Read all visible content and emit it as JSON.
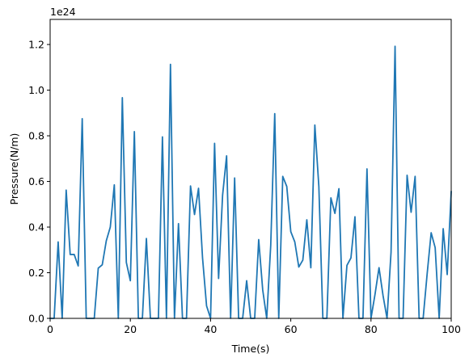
{
  "chart_data": {
    "type": "line",
    "title": "",
    "xlabel": "Time(s)",
    "ylabel": "Pressure(N/m)",
    "y_offset_text": "1e24",
    "xlim": [
      0,
      100
    ],
    "ylim": [
      0,
      1.31
    ],
    "grid": false,
    "x_ticks": [
      0,
      20,
      40,
      60,
      80,
      100
    ],
    "x_tick_labels": [
      "0",
      "20",
      "40",
      "60",
      "80",
      "100"
    ],
    "y_ticks": [
      0.0,
      0.2,
      0.4,
      0.6,
      0.8,
      1.0,
      1.2
    ],
    "y_tick_labels": [
      "0.0",
      "0.2",
      "0.4",
      "0.6",
      "0.8",
      "1.0",
      "1.2"
    ],
    "line_color": "#1f77b4",
    "series": [
      {
        "x": [
          0,
          1,
          2,
          3,
          4,
          5,
          6,
          7,
          8,
          9,
          10,
          11,
          12,
          13,
          14,
          15,
          16,
          17,
          18,
          19,
          20,
          21,
          22,
          23,
          24,
          25,
          26,
          27,
          28,
          29,
          30,
          31,
          32,
          33,
          34,
          35,
          36,
          37,
          38,
          39,
          40,
          41,
          42,
          43,
          44,
          45,
          46,
          47,
          48,
          49,
          50,
          51,
          52,
          53,
          54,
          55,
          56,
          57,
          58,
          59,
          60,
          61,
          62,
          63,
          64,
          65,
          66,
          67,
          68,
          69,
          70,
          71,
          72,
          73,
          74,
          75,
          76,
          77,
          78,
          79,
          80,
          81,
          82,
          83,
          84,
          85,
          86,
          87,
          88,
          89,
          90,
          91,
          92,
          93,
          94,
          95,
          96,
          97,
          98,
          99,
          100
        ],
        "y": [
          0,
          0,
          0.335,
          0,
          0.562,
          0.28,
          0.28,
          0.23,
          0.875,
          0,
          0,
          0,
          0.22,
          0.235,
          0.34,
          0.4,
          0.585,
          0,
          0.967,
          0.245,
          0.165,
          0.818,
          0,
          0,
          0.35,
          0,
          0,
          0,
          0.795,
          0,
          1.113,
          0,
          0.415,
          0,
          0,
          0.58,
          0.455,
          0.57,
          0.265,
          0.055,
          0,
          0.767,
          0.175,
          0.54,
          0.712,
          0,
          0.615,
          0,
          0,
          0.165,
          0,
          0,
          0.345,
          0.125,
          0,
          0.32,
          0.897,
          0,
          0.622,
          0.578,
          0.38,
          0.335,
          0.225,
          0.255,
          0.432,
          0.222,
          0.847,
          0.578,
          0,
          0,
          0.528,
          0.46,
          0.568,
          0,
          0.232,
          0.265,
          0.445,
          0,
          0,
          0.655,
          0,
          0.105,
          0.222,
          0.1,
          0,
          0.29,
          1.192,
          0,
          0,
          0.627,
          0.465,
          0.622,
          0,
          0,
          0.195,
          0.375,
          0.31,
          0,
          0.393,
          0.192,
          0.555
        ]
      }
    ]
  }
}
